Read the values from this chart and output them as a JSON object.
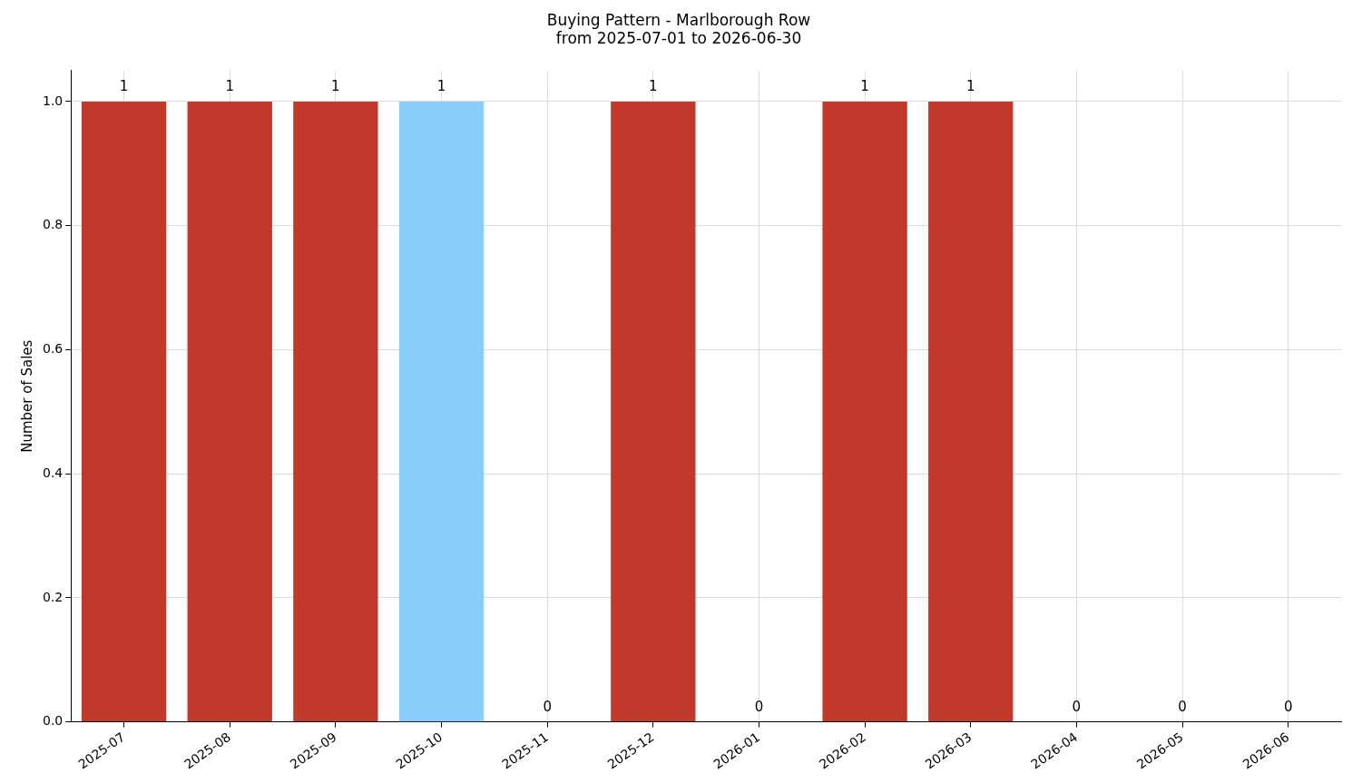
{
  "chart_data": {
    "type": "bar",
    "title": "Buying Pattern - Marlborough Row\nfrom 2025-07-01 to 2026-06-30",
    "ylabel": "Number of Sales",
    "categories": [
      "2025-07",
      "2025-08",
      "2025-09",
      "2025-10",
      "2025-11",
      "2025-12",
      "2026-01",
      "2026-02",
      "2026-03",
      "2026-04",
      "2026-05",
      "2026-06"
    ],
    "values": [
      1,
      1,
      1,
      1,
      0,
      1,
      0,
      1,
      1,
      0,
      0,
      0
    ],
    "colors": [
      "#c0392b",
      "#c0392b",
      "#c0392b",
      "#87cefa",
      "#c0392b",
      "#c0392b",
      "#c0392b",
      "#c0392b",
      "#c0392b",
      "#c0392b",
      "#c0392b",
      "#c0392b"
    ],
    "ylim": [
      0,
      1.05
    ],
    "yticks": [
      {
        "value": 0,
        "label": "0.0"
      },
      {
        "value": 0.2,
        "label": "0.2"
      },
      {
        "value": 0.4,
        "label": "0.4"
      },
      {
        "value": 0.6,
        "label": "0.6"
      },
      {
        "value": 0.8,
        "label": "0.8"
      },
      {
        "value": 1,
        "label": "1.0"
      }
    ],
    "grid": true,
    "data_labels": true,
    "legend": false
  }
}
